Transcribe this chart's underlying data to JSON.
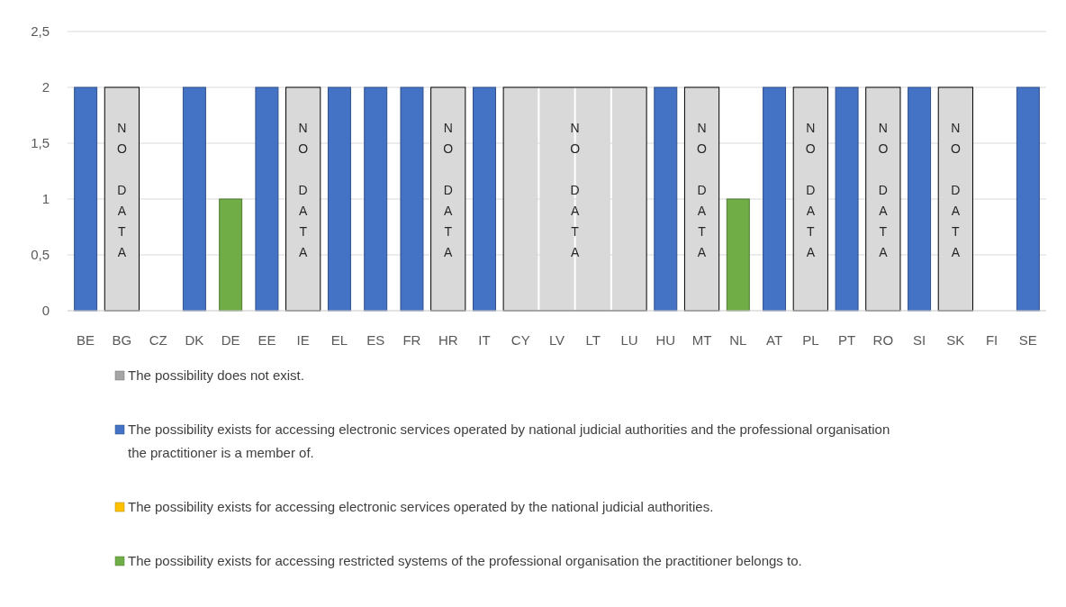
{
  "chart_data": {
    "type": "bar",
    "categories": [
      "BE",
      "BG",
      "CZ",
      "DK",
      "DE",
      "EE",
      "IE",
      "EL",
      "ES",
      "FR",
      "HR",
      "IT",
      "CY",
      "LV",
      "LT",
      "LU",
      "HU",
      "MT",
      "NL",
      "AT",
      "PL",
      "PT",
      "RO",
      "SI",
      "SK",
      "FI",
      "SE"
    ],
    "series": [
      {
        "name": "The possibility does not exist.",
        "color": "#a5a5a5",
        "values": [
          null,
          null,
          null,
          null,
          null,
          null,
          null,
          null,
          null,
          null,
          null,
          null,
          null,
          null,
          null,
          null,
          null,
          null,
          null,
          null,
          null,
          null,
          null,
          null,
          null,
          null,
          null
        ]
      },
      {
        "name": "The possibility exists for accessing electronic services operated by national judicial authorities and the professional organisation the practitioner is a member of.",
        "color": "#4472c4",
        "values": [
          2,
          null,
          null,
          2,
          null,
          2,
          null,
          2,
          2,
          2,
          null,
          2,
          null,
          null,
          null,
          null,
          2,
          null,
          null,
          2,
          null,
          2,
          null,
          2,
          null,
          null,
          2
        ]
      },
      {
        "name": "The possibility exists for accessing electronic services operated by the national judicial authorities.",
        "color": "#ffc000",
        "values": [
          null,
          null,
          null,
          null,
          null,
          null,
          null,
          null,
          null,
          null,
          null,
          null,
          null,
          null,
          null,
          null,
          null,
          null,
          null,
          null,
          null,
          null,
          null,
          null,
          null,
          null,
          null
        ]
      },
      {
        "name": "The possibility exists for accessing restricted systems of the professional organisation the practitioner belongs to.",
        "color": "#70ad47",
        "values": [
          null,
          null,
          null,
          null,
          1,
          null,
          null,
          null,
          null,
          null,
          null,
          null,
          null,
          null,
          null,
          null,
          null,
          null,
          1,
          null,
          null,
          null,
          null,
          null,
          null,
          null,
          null
        ]
      },
      {
        "color": "#d9d9d9",
        "values": [
          null,
          2,
          null,
          null,
          null,
          null,
          2,
          null,
          null,
          null,
          2,
          null,
          2,
          2,
          2,
          2,
          null,
          2,
          null,
          null,
          2,
          null,
          2,
          null,
          2,
          null,
          null
        ],
        "value_labels": [
          null,
          "NO DATA",
          null,
          null,
          null,
          null,
          "NO DATA",
          null,
          null,
          null,
          "NO DATA",
          null,
          null,
          "NO DATA",
          null,
          null,
          null,
          "NO DATA",
          null,
          null,
          "NO DATA",
          null,
          "NO DATA",
          null,
          "NO DATA",
          null,
          null
        ]
      }
    ],
    "ylim": [
      0,
      2.5
    ],
    "yticks": [
      0,
      {
        "value": 0.5,
        "label": "0,5"
      },
      1,
      {
        "value": 1.5,
        "label": "1,5"
      },
      2,
      {
        "value": 2.5,
        "label": "2,5"
      }
    ],
    "grid": "y",
    "legend": "bottom"
  }
}
